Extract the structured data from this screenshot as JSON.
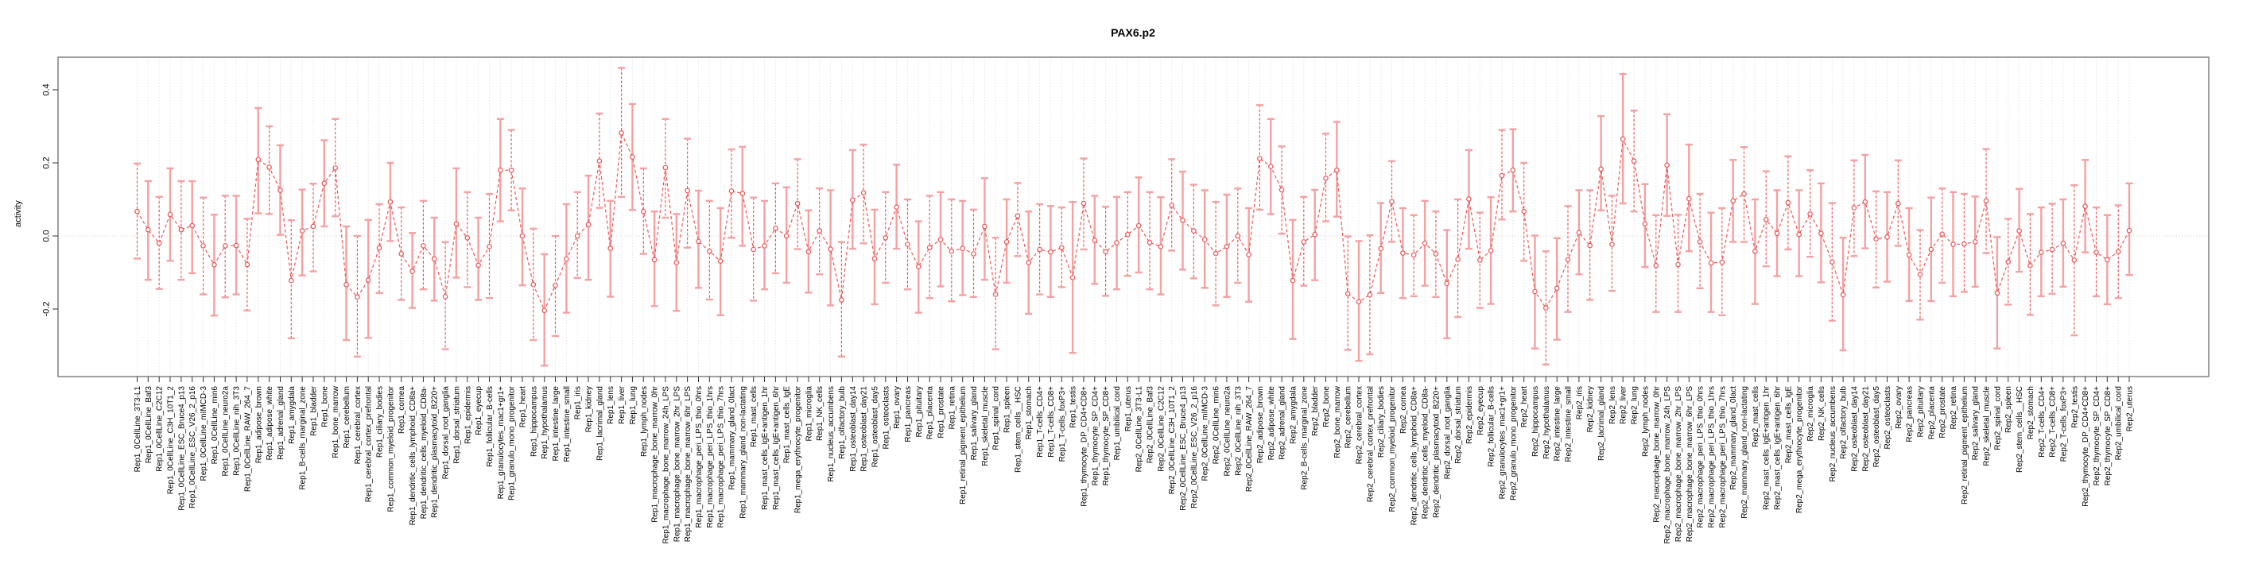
{
  "title": "PAX6.p2",
  "y_axis": {
    "label": "activity",
    "tick_labels": [
      "0.4",
      "0.2",
      "0.0",
      "-0.2"
    ],
    "tick_values": [
      0.4,
      0.2,
      0.0,
      -0.2
    ]
  },
  "chart_data": {
    "type": "line",
    "title": "PAX6.p2",
    "xlabel": "",
    "ylabel": "activity",
    "ylim": [
      -0.38,
      0.49
    ],
    "grid": "vertical dotted gridline at every sample; horizontal dotted line at 0",
    "legend": "none",
    "point_format": [
      "mean",
      "lower",
      "upper"
    ],
    "marker": "open-circle",
    "line_style": "dashed",
    "colors": {
      "line": "#ee5555",
      "point": "#ee5555",
      "error_bar": "#f6a0a0",
      "grid": "#d9d9d9",
      "zero_line": "#c9c9c9",
      "box": "#888888",
      "tick": "#333333"
    },
    "replicates": [
      "Rep1",
      "Rep2"
    ],
    "samples": [
      "0CellLine_3T3-L1",
      "0CellLine_Baf3",
      "0CellLine_C2C12",
      "0CellLine_C3H_10T1_2",
      "0CellLine_ESC_Bruce4_p13",
      "0CellLine_ESC_V26_2_p16",
      "0CellLine_mIMCD-3",
      "0CellLine_min6",
      "0CellLine_neuro2a",
      "0CellLine_nih_3T3",
      "0CellLine_RAW_264_7",
      "adipose_brown",
      "adipose_white",
      "adrenal_gland",
      "amygdala",
      "B-cells_marginal_zone",
      "bladder",
      "bone",
      "bone_marrow",
      "cerebellum",
      "cerebral_cortex",
      "cerebral_cortex_prefrontal",
      "ciliary_bodies",
      "common_myeloid_progenitor",
      "cornea",
      "dendritic_cells_lymphoid_CD8a+",
      "dendritic_cells_myeloid_CD8a-",
      "dendritic_plasmacytoid_B220+",
      "dorsal_root_ganglia",
      "dorsal_striatum",
      "epidermis",
      "eyecup",
      "follicular_B-cells",
      "granulocytes_mac1+gr1+",
      "granulo_mono_progenitor",
      "heart",
      "hippocampus",
      "hypothalamus",
      "intestine_large",
      "intestine_small",
      "iris",
      "kidney",
      "lacrimal_gland",
      "lens",
      "liver",
      "lung",
      "lymph_nodes",
      "macrophage_bone_marrow_0hr",
      "macrophage_bone_marrow_24h_LPS",
      "macrophage_bone_marrow_2hr_LPS",
      "macrophage_bone_marrow_6hr_LPS",
      "macrophage_peri_LPS_thio_0hrs",
      "macrophage_peri_LPS_thio_1hrs",
      "macrophage_peri_LPS_thio_7hrs",
      "mammary_gland_0lact",
      "mammary_gland_non-lactating",
      "mast_cells",
      "mast_cells_IgE+antigen_1hr",
      "mast_cells_IgE+antigen_6hr",
      "mast_cells_IgE",
      "mega_erythrocyte_progenitor",
      "microglia",
      "NK_cells",
      "nucleus_accumbens",
      "olfactory_bulb",
      "osteoblast_day14",
      "osteoblast_day21",
      "osteoblast_day5",
      "osteoclasts",
      "ovary",
      "pancreas",
      "pituitary",
      "placenta",
      "prostate",
      "retina",
      "retinal_pigment_epithelium",
      "salivary_gland",
      "skeletal_muscle",
      "spinal_cord",
      "spleen",
      "stem_cells__HSC",
      "stomach",
      "T-cells_CD4+",
      "T-cells_CD8+",
      "T-cells_foxP3+",
      "testis",
      "thymocyte_DP_CD4+CD8+",
      "thymocyte_SP_CD4+",
      "thymocyte_SP_CD8+",
      "umbilical_cord",
      "uterus"
    ],
    "series": [
      {
        "name": "Rep1",
        "points": [
          [
            0.067,
            -0.062,
            0.198
          ],
          [
            0.017,
            -0.12,
            0.15
          ],
          [
            -0.02,
            -0.145,
            0.107
          ],
          [
            0.059,
            -0.068,
            0.185
          ],
          [
            0.017,
            -0.12,
            0.15
          ],
          [
            0.028,
            -0.102,
            0.15
          ],
          [
            -0.027,
            -0.16,
            0.105
          ],
          [
            -0.079,
            -0.218,
            0.058
          ],
          [
            -0.027,
            -0.168,
            0.11
          ],
          [
            -0.026,
            -0.16,
            0.11
          ],
          [
            -0.078,
            -0.204,
            0.047
          ],
          [
            0.209,
            0.062,
            0.35
          ],
          [
            0.188,
            0.06,
            0.3
          ],
          [
            0.125,
            0.003,
            0.248
          ],
          [
            -0.122,
            -0.28,
            0.043
          ],
          [
            0.014,
            -0.108,
            0.127
          ],
          [
            0.026,
            -0.097,
            0.143
          ],
          [
            0.144,
            0.026,
            0.262
          ],
          [
            0.186,
            0.054,
            0.32
          ],
          [
            -0.133,
            -0.285,
            0.026
          ],
          [
            -0.167,
            -0.33,
            0.0
          ],
          [
            -0.121,
            -0.279,
            0.044
          ],
          [
            -0.033,
            -0.156,
            0.087
          ],
          [
            0.093,
            -0.014,
            0.2
          ],
          [
            -0.049,
            -0.175,
            0.078
          ],
          [
            -0.097,
            -0.197,
            0.008
          ],
          [
            -0.027,
            -0.146,
            0.096
          ],
          [
            -0.063,
            -0.177,
            0.05
          ],
          [
            -0.166,
            -0.31,
            -0.017
          ],
          [
            0.033,
            -0.114,
            0.185
          ],
          [
            -0.005,
            -0.14,
            0.12
          ],
          [
            -0.08,
            -0.175,
            0.05
          ],
          [
            -0.029,
            -0.17,
            0.115
          ],
          [
            0.18,
            0.04,
            0.32
          ],
          [
            0.18,
            0.07,
            0.29
          ],
          [
            0.0,
            -0.135,
            0.13
          ],
          [
            -0.133,
            -0.285,
            0.02
          ],
          [
            -0.204,
            -0.355,
            -0.05
          ],
          [
            -0.135,
            -0.274,
            0.0
          ],
          [
            -0.063,
            -0.21,
            0.087
          ],
          [
            0.0,
            -0.115,
            0.12
          ],
          [
            0.031,
            -0.12,
            0.165
          ],
          [
            0.205,
            0.077,
            0.335
          ],
          [
            -0.034,
            -0.166,
            0.096
          ],
          [
            0.282,
            0.107,
            0.46
          ],
          [
            0.216,
            0.071,
            0.361
          ],
          [
            0.067,
            -0.049,
            0.185
          ],
          [
            -0.065,
            -0.192,
            0.067
          ],
          [
            0.187,
            0.05,
            0.32
          ],
          [
            -0.073,
            -0.205,
            0.06
          ],
          [
            0.124,
            -0.032,
            0.266
          ],
          [
            -0.015,
            -0.142,
            0.124
          ],
          [
            -0.042,
            -0.174,
            0.096
          ],
          [
            -0.069,
            -0.217,
            0.076
          ],
          [
            0.123,
            -0.005,
            0.237
          ],
          [
            0.116,
            -0.027,
            0.244
          ],
          [
            -0.037,
            -0.177,
            0.105
          ],
          [
            -0.027,
            -0.146,
            0.096
          ],
          [
            0.021,
            -0.102,
            0.144
          ],
          [
            0.0,
            -0.128,
            0.133
          ],
          [
            0.089,
            -0.036,
            0.21
          ],
          [
            -0.043,
            -0.155,
            0.07
          ],
          [
            0.014,
            -0.105,
            0.13
          ],
          [
            -0.036,
            -0.19,
            0.125
          ],
          [
            -0.175,
            -0.33,
            -0.017
          ],
          [
            0.098,
            -0.035,
            0.235
          ],
          [
            0.118,
            -0.02,
            0.25
          ],
          [
            -0.062,
            -0.187,
            0.072
          ],
          [
            -0.005,
            -0.128,
            0.12
          ],
          [
            0.079,
            -0.035,
            0.195
          ],
          [
            -0.023,
            -0.146,
            0.1
          ],
          [
            -0.084,
            -0.21,
            0.04
          ],
          [
            -0.032,
            -0.17,
            0.11
          ],
          [
            -0.01,
            -0.138,
            0.12
          ],
          [
            -0.042,
            -0.179,
            0.1
          ],
          [
            -0.034,
            -0.162,
            0.096
          ],
          [
            -0.049,
            -0.167,
            0.072
          ],
          [
            0.026,
            -0.12,
            0.158
          ],
          [
            -0.16,
            -0.31,
            -0.005
          ],
          [
            -0.016,
            -0.128,
            0.1
          ],
          [
            0.055,
            -0.055,
            0.145
          ],
          [
            -0.073,
            -0.213,
            0.067
          ],
          [
            -0.037,
            -0.16,
            0.087
          ],
          [
            -0.044,
            -0.167,
            0.082
          ],
          [
            -0.032,
            -0.14,
            0.078
          ],
          [
            -0.114,
            -0.32,
            0.093
          ],
          [
            0.089,
            -0.037,
            0.212
          ],
          [
            -0.012,
            -0.131,
            0.11
          ],
          [
            -0.043,
            -0.164,
            0.08
          ],
          [
            -0.019,
            -0.146,
            0.107
          ],
          [
            0.004,
            -0.109,
            0.12
          ]
        ]
      },
      {
        "name": "Rep2",
        "points": [
          [
            0.028,
            -0.1,
            0.16
          ],
          [
            -0.018,
            -0.146,
            0.12
          ],
          [
            -0.029,
            -0.16,
            0.106
          ],
          [
            0.084,
            -0.04,
            0.21
          ],
          [
            0.043,
            -0.092,
            0.176
          ],
          [
            0.014,
            -0.116,
            0.14
          ],
          [
            -0.01,
            -0.142,
            0.125
          ],
          [
            -0.048,
            -0.19,
            0.093
          ],
          [
            -0.029,
            -0.167,
            0.113
          ],
          [
            0.0,
            -0.128,
            0.13
          ],
          [
            -0.051,
            -0.18,
            0.076
          ],
          [
            0.212,
            0.072,
            0.358
          ],
          [
            0.19,
            0.06,
            0.32
          ],
          [
            0.126,
            0.006,
            0.245
          ],
          [
            -0.122,
            -0.282,
            0.044
          ],
          [
            -0.016,
            -0.136,
            0.107
          ],
          [
            0.004,
            -0.121,
            0.126
          ],
          [
            0.158,
            0.04,
            0.28
          ],
          [
            0.18,
            0.053,
            0.312
          ],
          [
            -0.158,
            -0.312,
            -0.001
          ],
          [
            -0.18,
            -0.342,
            -0.014
          ],
          [
            -0.161,
            -0.324,
            0.002
          ],
          [
            -0.035,
            -0.156,
            0.09
          ],
          [
            0.094,
            -0.016,
            0.205
          ],
          [
            -0.047,
            -0.17,
            0.076
          ],
          [
            -0.052,
            -0.165,
            0.057
          ],
          [
            -0.02,
            -0.136,
            0.096
          ],
          [
            -0.049,
            -0.167,
            0.067
          ],
          [
            -0.13,
            -0.28,
            0.016
          ],
          [
            -0.064,
            -0.222,
            0.1
          ],
          [
            0.101,
            -0.035,
            0.235
          ],
          [
            -0.066,
            -0.197,
            0.064
          ],
          [
            -0.04,
            -0.186,
            0.106
          ],
          [
            0.165,
            0.045,
            0.29
          ],
          [
            0.18,
            0.067,
            0.292
          ],
          [
            0.067,
            -0.068,
            0.2
          ],
          [
            -0.152,
            -0.308,
            0.001
          ],
          [
            -0.197,
            -0.352,
            -0.042
          ],
          [
            -0.143,
            -0.284,
            -0.006
          ],
          [
            -0.065,
            -0.208,
            0.082
          ],
          [
            0.009,
            -0.105,
            0.125
          ],
          [
            -0.026,
            -0.175,
            0.125
          ],
          [
            0.183,
            0.07,
            0.328
          ],
          [
            -0.023,
            -0.15,
            0.11
          ],
          [
            0.265,
            0.089,
            0.443
          ],
          [
            0.205,
            0.067,
            0.343
          ],
          [
            0.033,
            -0.085,
            0.142
          ],
          [
            -0.081,
            -0.208,
            0.057
          ],
          [
            0.194,
            0.055,
            0.333
          ],
          [
            -0.078,
            -0.208,
            0.058
          ],
          [
            0.102,
            -0.042,
            0.25
          ],
          [
            -0.016,
            -0.143,
            0.115
          ],
          [
            -0.074,
            -0.208,
            0.064
          ],
          [
            -0.072,
            -0.217,
            0.076
          ],
          [
            0.096,
            -0.016,
            0.208
          ],
          [
            0.115,
            -0.016,
            0.243
          ],
          [
            -0.042,
            -0.186,
            0.1
          ],
          [
            0.045,
            -0.083,
            0.177
          ],
          [
            0.007,
            -0.11,
            0.125
          ],
          [
            0.091,
            -0.037,
            0.218
          ],
          [
            0.004,
            -0.11,
            0.125
          ],
          [
            0.06,
            -0.057,
            0.18
          ],
          [
            0.007,
            -0.127,
            0.144
          ],
          [
            -0.071,
            -0.232,
            0.09
          ],
          [
            -0.161,
            -0.313,
            -0.005
          ],
          [
            0.077,
            -0.055,
            0.207
          ],
          [
            0.093,
            -0.034,
            0.222
          ],
          [
            -0.008,
            -0.141,
            0.122
          ],
          [
            -0.003,
            -0.125,
            0.12
          ],
          [
            0.089,
            -0.027,
            0.207
          ],
          [
            -0.052,
            -0.178,
            0.076
          ],
          [
            -0.105,
            -0.229,
            0.016
          ],
          [
            -0.037,
            -0.178,
            0.105
          ],
          [
            0.005,
            -0.128,
            0.13
          ],
          [
            -0.023,
            -0.165,
            0.12
          ],
          [
            -0.022,
            -0.153,
            0.115
          ],
          [
            -0.016,
            -0.139,
            0.108
          ],
          [
            0.096,
            -0.047,
            0.238
          ],
          [
            -0.156,
            -0.308,
            -0.003
          ],
          [
            -0.071,
            -0.188,
            0.047
          ],
          [
            0.014,
            -0.098,
            0.129
          ],
          [
            -0.081,
            -0.216,
            0.06
          ],
          [
            -0.045,
            -0.165,
            0.078
          ],
          [
            -0.037,
            -0.158,
            0.088
          ],
          [
            -0.02,
            -0.139,
            0.1
          ],
          [
            -0.066,
            -0.272,
            0.139
          ],
          [
            0.081,
            -0.045,
            0.208
          ],
          [
            -0.045,
            -0.165,
            0.078
          ],
          [
            -0.065,
            -0.187,
            0.057
          ],
          [
            -0.043,
            -0.17,
            0.084
          ],
          [
            0.015,
            -0.107,
            0.144
          ]
        ]
      }
    ]
  }
}
